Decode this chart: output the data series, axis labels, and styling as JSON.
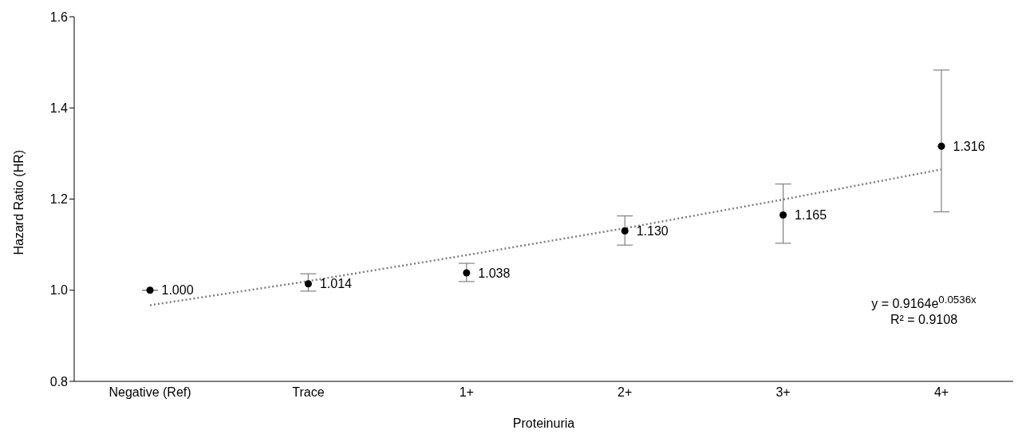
{
  "chart_data": {
    "type": "scatter",
    "xlabel": "Proteinuria",
    "ylabel": "Hazard Ratio (HR)",
    "categories": [
      "Negative (Ref)",
      "Trace",
      "1+",
      "2+",
      "3+",
      "4+"
    ],
    "ylim": [
      0.8,
      1.6
    ],
    "yticks": [
      {
        "value": 0.8,
        "label": "0.8"
      },
      {
        "value": 1.0,
        "label": "1.0"
      },
      {
        "value": 1.2,
        "label": "1.2"
      },
      {
        "value": 1.4,
        "label": "1.4"
      },
      {
        "value": 1.6,
        "label": "1.6"
      }
    ],
    "series": [
      {
        "color": "#000000",
        "marker": "circle",
        "values": [
          1.0,
          1.014,
          1.038,
          1.13,
          1.165,
          1.316
        ],
        "errors": [
          null,
          [
            0.998,
            1.036
          ],
          [
            1.019,
            1.059
          ],
          [
            1.099,
            1.163
          ],
          [
            1.103,
            1.233
          ],
          [
            1.172,
            1.483
          ]
        ],
        "value_labels": [
          "1.000",
          "1.014",
          "1.038",
          "1.130",
          "1.165",
          "1.316"
        ]
      },
      {
        "type": "line",
        "color": "#808080",
        "line_style": "dotted",
        "marker": "none",
        "values": [
          0.967,
          1.02,
          1.077,
          1.136,
          1.199,
          1.265
        ]
      }
    ],
    "annotations": [
      "y = 0.9164e$^{0.0536x}$",
      "R² = 0.9108"
    ]
  }
}
